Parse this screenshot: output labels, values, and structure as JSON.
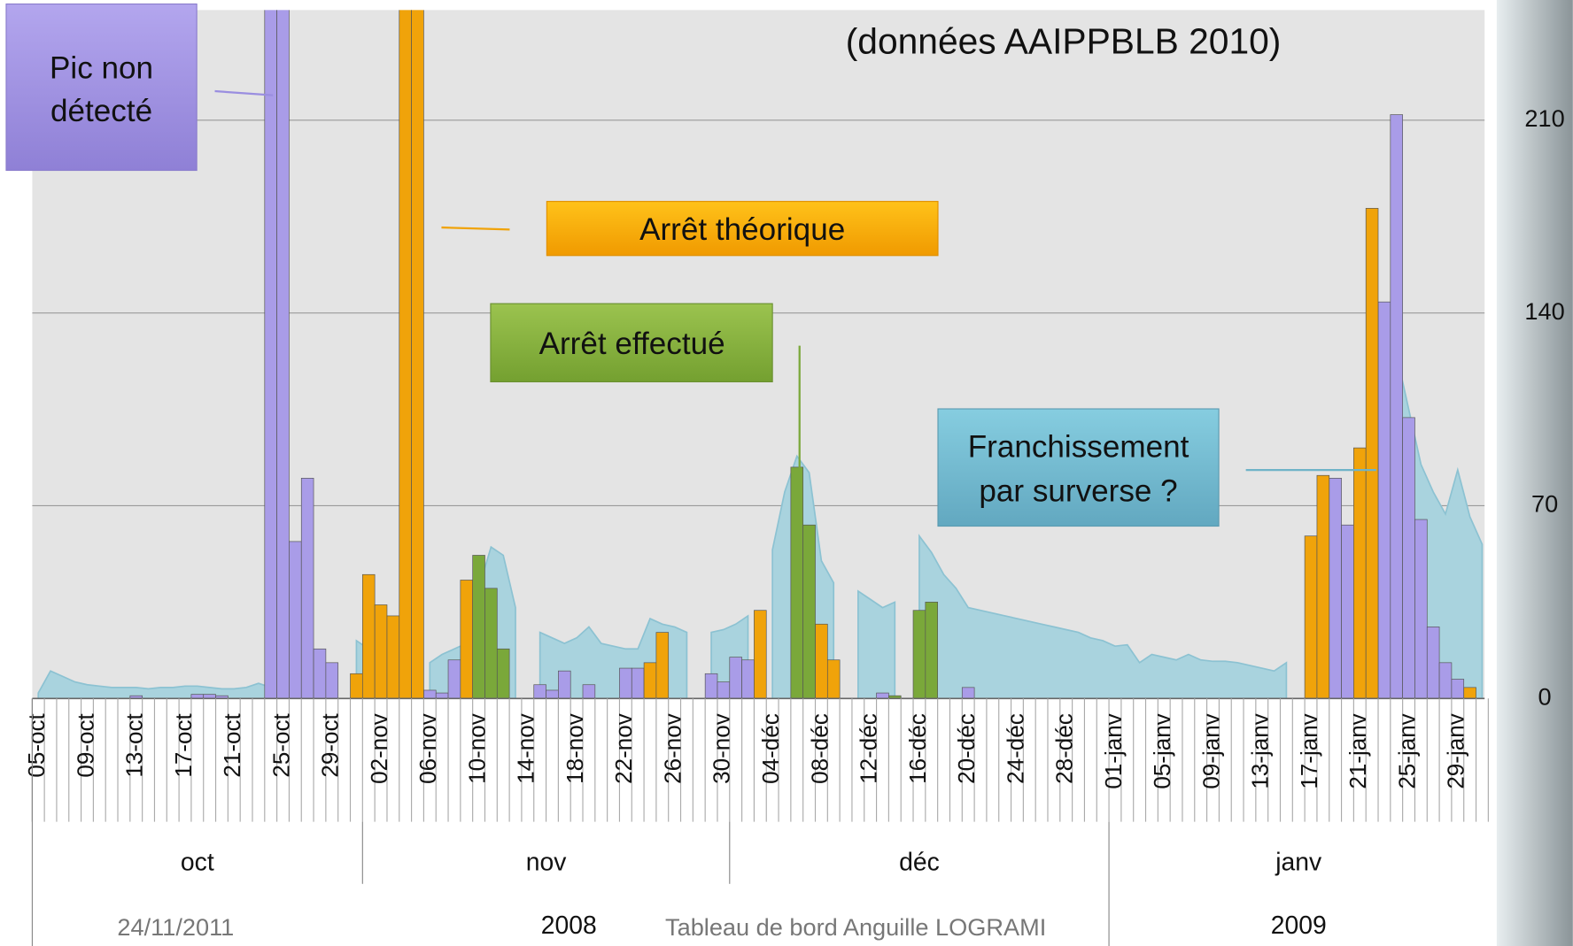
{
  "chart_data": {
    "type": "bar",
    "source_note": "(données AAIPPBLB 2010)",
    "annotations": {
      "pic": [
        "Pic non",
        "détecté"
      ],
      "arret_theorique": "Arrêt théorique",
      "arret_effectue": "Arrêt effectué",
      "franchissement": [
        "Franchissement",
        "par surverse ?"
      ]
    },
    "categories": [
      "05-oct",
      null,
      null,
      null,
      "09-oct",
      null,
      null,
      null,
      "13-oct",
      null,
      null,
      null,
      "17-oct",
      null,
      null,
      null,
      "21-oct",
      null,
      null,
      null,
      "25-oct",
      null,
      null,
      null,
      "29-oct",
      null,
      null,
      null,
      "02-nov",
      null,
      null,
      null,
      "06-nov",
      null,
      null,
      null,
      "10-nov",
      null,
      null,
      null,
      "14-nov",
      null,
      null,
      null,
      "18-nov",
      null,
      null,
      null,
      "22-nov",
      null,
      null,
      null,
      "26-nov",
      null,
      null,
      null,
      "30-nov",
      null,
      null,
      null,
      "04-déc",
      null,
      null,
      null,
      "08-déc",
      null,
      null,
      null,
      "12-déc",
      null,
      null,
      null,
      "16-déc",
      null,
      null,
      null,
      "20-déc",
      null,
      null,
      null,
      "24-déc",
      null,
      null,
      null,
      "28-déc",
      null,
      null,
      null,
      "01-janv",
      null,
      null,
      null,
      "05-janv",
      null,
      null,
      null,
      "09-janv",
      null,
      null,
      null,
      "13-janv",
      null,
      null,
      null,
      "17-janv",
      null,
      null,
      null,
      "21-janv",
      null,
      null,
      null,
      "25-janv",
      null,
      null,
      null,
      "29-janv",
      null,
      null
    ],
    "month_groups": [
      "oct",
      "nov",
      "déc",
      "janv"
    ],
    "year_groups": [
      "2008",
      "2009"
    ],
    "area": {
      "color": "#a9d3de",
      "values": [
        2,
        10,
        8,
        6,
        5,
        4.5,
        4,
        4,
        4,
        3.5,
        4,
        4,
        4.5,
        4.5,
        4,
        3.5,
        3.5,
        4,
        5.5,
        4,
        3.5,
        null,
        null,
        null,
        null,
        null,
        21,
        18,
        null,
        null,
        null,
        null,
        13,
        16,
        18,
        20,
        40,
        55,
        52,
        33,
        null,
        24,
        22,
        20,
        22,
        26,
        20,
        19,
        18,
        18,
        29,
        27,
        26,
        24,
        null,
        24,
        25,
        27,
        30,
        null,
        54,
        75,
        88,
        82,
        50,
        42,
        null,
        39,
        36,
        33,
        35,
        null,
        59,
        53,
        45,
        40,
        33,
        32,
        31,
        30,
        29,
        28,
        27,
        26,
        25,
        24,
        22,
        21,
        19,
        19.5,
        13,
        16,
        15,
        14,
        16,
        14,
        13.5,
        13.5,
        13,
        12,
        11,
        10,
        13,
        null,
        24,
        20,
        16,
        20,
        70,
        100,
        135,
        125,
        105,
        85,
        75,
        67,
        83,
        66,
        56
      ]
    },
    "series": [
      {
        "color": "#a99ce8",
        "values": [
          null,
          null,
          null,
          null,
          null,
          null,
          null,
          null,
          1,
          null,
          null,
          null,
          null,
          1.5,
          1.5,
          1,
          null,
          null,
          null,
          260,
          260,
          57,
          80,
          18,
          13,
          null,
          null,
          null,
          null,
          null,
          null,
          null,
          3,
          2,
          14,
          null,
          null,
          null,
          null,
          null,
          null,
          5,
          3,
          10,
          null,
          5,
          null,
          null,
          11,
          11,
          null,
          null,
          null,
          null,
          null,
          9,
          6,
          15,
          14,
          null,
          null,
          null,
          null,
          null,
          null,
          null,
          null,
          null,
          null,
          2,
          null,
          null,
          null,
          null,
          null,
          null,
          4,
          null,
          null,
          null,
          null,
          null,
          null,
          null,
          null,
          null,
          null,
          null,
          null,
          null,
          null,
          null,
          null,
          null,
          null,
          null,
          null,
          null,
          null,
          null,
          null,
          null,
          null,
          null,
          null,
          null,
          80,
          63,
          null,
          null,
          144,
          212,
          102,
          65,
          26,
          13,
          7,
          null,
          null
        ]
      },
      {
        "color": "#f0a30a",
        "values": [
          null,
          null,
          null,
          null,
          null,
          null,
          null,
          null,
          null,
          null,
          null,
          null,
          null,
          null,
          null,
          null,
          null,
          null,
          null,
          null,
          null,
          null,
          null,
          null,
          null,
          null,
          9,
          45,
          34,
          30,
          260,
          260,
          null,
          null,
          null,
          43,
          null,
          null,
          null,
          null,
          null,
          null,
          null,
          null,
          null,
          null,
          null,
          null,
          null,
          null,
          13,
          24,
          null,
          null,
          null,
          null,
          null,
          null,
          null,
          32,
          null,
          null,
          null,
          null,
          27,
          14,
          null,
          null,
          null,
          null,
          null,
          null,
          null,
          null,
          null,
          null,
          null,
          null,
          null,
          null,
          null,
          null,
          null,
          null,
          null,
          null,
          null,
          null,
          null,
          null,
          null,
          null,
          null,
          null,
          null,
          null,
          null,
          null,
          null,
          null,
          null,
          null,
          null,
          null,
          59,
          81,
          null,
          null,
          91,
          178,
          null,
          null,
          null,
          null,
          null,
          null,
          null,
          4,
          null
        ]
      },
      {
        "color": "#7aa83a",
        "values": [
          null,
          null,
          null,
          null,
          null,
          null,
          null,
          null,
          null,
          null,
          null,
          null,
          null,
          null,
          null,
          null,
          null,
          null,
          null,
          null,
          null,
          null,
          null,
          null,
          null,
          null,
          null,
          null,
          null,
          null,
          null,
          null,
          null,
          null,
          null,
          null,
          52,
          40,
          18,
          null,
          null,
          null,
          null,
          null,
          null,
          null,
          null,
          null,
          null,
          null,
          null,
          null,
          null,
          null,
          null,
          null,
          null,
          null,
          null,
          null,
          null,
          null,
          84,
          63,
          null,
          null,
          null,
          null,
          null,
          null,
          1,
          null,
          32,
          35,
          null,
          null,
          null,
          null,
          null,
          null,
          null,
          null,
          null,
          null,
          null,
          null,
          null,
          null,
          null,
          null,
          null,
          null,
          null,
          null,
          null,
          null,
          null,
          null,
          null,
          null,
          null,
          null,
          null,
          null,
          null,
          null,
          null,
          null,
          null,
          null,
          null,
          null,
          null,
          null,
          null,
          null,
          null,
          null,
          null
        ]
      }
    ],
    "ylim": [
      0,
      250
    ],
    "yticks": [
      0,
      70,
      140,
      210
    ],
    "grid": true,
    "y_axis_side": "right"
  },
  "footer": {
    "date": "24/11/2011",
    "title": "Tableau de bord Anguille LOGRAMI"
  }
}
